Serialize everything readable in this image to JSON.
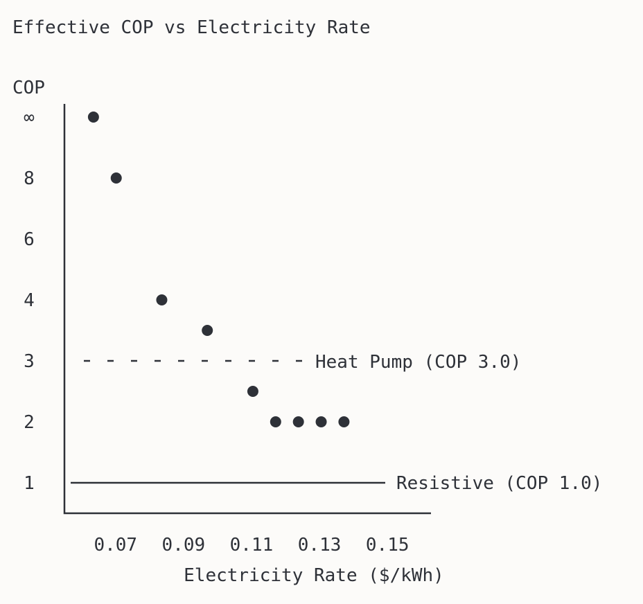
{
  "chart_data": {
    "type": "scatter",
    "title": "Effective COP vs Electricity Rate",
    "ylabel": "COP",
    "xlabel": "Electricity Rate ($/kWh)",
    "y_tick_labels": [
      "∞",
      "8",
      "6",
      "4",
      "3",
      "2",
      "1"
    ],
    "x_tick_labels": [
      "0.07",
      "0.09",
      "0.11",
      "0.13",
      "0.15"
    ],
    "x_ticks": [
      0.07,
      0.09,
      0.11,
      0.13,
      0.15
    ],
    "xlim": [
      0.0568,
      0.1628
    ],
    "points": [
      {
        "x": 0.0635,
        "y": "∞"
      },
      {
        "x": 0.0702,
        "y": 8
      },
      {
        "x": 0.0836,
        "y": 4
      },
      {
        "x": 0.097,
        "y": 3.5
      },
      {
        "x": 0.1104,
        "y": 2.5
      },
      {
        "x": 0.1171,
        "y": 2
      },
      {
        "x": 0.1238,
        "y": 2
      },
      {
        "x": 0.1305,
        "y": 2
      },
      {
        "x": 0.1372,
        "y": 2
      }
    ],
    "reference_lines": [
      {
        "label": "Heat Pump (COP 3.0)",
        "y": 3,
        "style": "dashed"
      },
      {
        "label": "Resistive (COP 1.0)",
        "y": 1,
        "style": "solid"
      }
    ],
    "grid": false
  }
}
